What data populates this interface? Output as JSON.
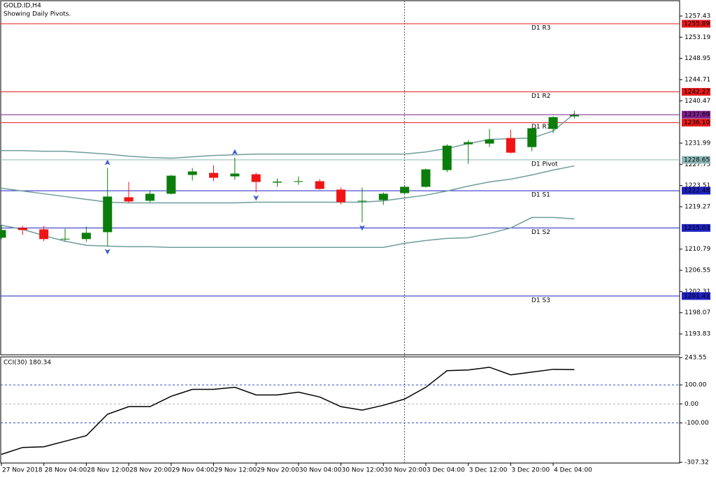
{
  "chart_data": [
    {
      "type": "candlestick",
      "title": "GOLD.ID,H4",
      "subtitle": "Showing Daily Pivots.",
      "categories": [
        "27 Nov 2018",
        null,
        "28 Nov 04:00",
        null,
        "28 Nov 12:00",
        null,
        "28 Nov 20:00",
        null,
        "29 Nov 04:00",
        null,
        "29 Nov 12:00",
        null,
        "29 Nov 20:00",
        null,
        "30 Nov 04:00",
        null,
        "30 Nov 12:00",
        null,
        "30 Nov 20:00",
        null,
        "3 Dec 04:00",
        null,
        "3 Dec 12:00",
        null,
        "3 Dec 20:00",
        null,
        "4 Dec 04:00",
        null
      ],
      "candles": {
        "open": [
          1213.08,
          1215.03,
          1214.75,
          1212.8,
          1212.8,
          1214.19,
          1221.17,
          1220.47,
          1221.87,
          1225.63,
          1226.05,
          1225.35,
          1225.77,
          1224.1,
          1224.24,
          1224.38,
          1222.7,
          1220.33,
          1220.61,
          1222.0,
          1223.26,
          1226.61,
          1231.77,
          1231.91,
          1233.02,
          1231.21,
          1234.84,
          1237.35
        ],
        "high": [
          1215.59,
          1215.45,
          1215.45,
          1214.89,
          1215.31,
          1227.03,
          1224.24,
          1222.56,
          1225.63,
          1227.03,
          1227.58,
          1229.12,
          1226.05,
          1224.93,
          1225.35,
          1224.79,
          1223.12,
          1223.12,
          1222.14,
          1223.54,
          1226.89,
          1231.77,
          1232.6,
          1234.84,
          1234.7,
          1232.74,
          1237.35,
          1238.46
        ],
        "low": [
          1212.8,
          1213.64,
          1212.38,
          1212.38,
          1212.24,
          1211.4,
          1220.05,
          1220.19,
          1221.73,
          1224.52,
          1224.38,
          1224.66,
          1222.14,
          1223.26,
          1223.68,
          1222.7,
          1219.77,
          1216.15,
          1219.63,
          1221.9,
          1223.12,
          1226.19,
          1227.86,
          1231.21,
          1229.95,
          1230.37,
          1234.0,
          1236.93
        ],
        "close": [
          1214.61,
          1214.61,
          1212.8,
          1212.87,
          1214.06,
          1221.31,
          1220.33,
          1221.87,
          1225.49,
          1226.33,
          1225.07,
          1225.91,
          1224.24,
          1224.31,
          1224.38,
          1222.84,
          1220.19,
          1220.47,
          1221.87,
          1223.26,
          1226.75,
          1231.49,
          1232.19,
          1232.74,
          1230.09,
          1234.98,
          1237.21,
          1237.69
        ]
      },
      "up_color": "#0b7d0b",
      "down_color": "#f01414",
      "series": [
        {
          "color": "#6f9c9c",
          "values": [
            1230.51,
            1230.51,
            1230.37,
            1230.37,
            1230.09,
            1229.81,
            1229.39,
            1229.12,
            1228.98,
            1229.26,
            1229.53,
            1229.67,
            1229.81,
            1229.81,
            1229.81,
            1229.81,
            1229.81,
            1229.81,
            1229.81,
            1229.81,
            1230.23,
            1230.93,
            1231.91,
            1232.74,
            1232.88,
            1233.02,
            1234.42,
            1237.9
          ]
        },
        {
          "color": "#6f9c9c",
          "values": [
            1222.98,
            1222.42,
            1221.87,
            1221.31,
            1220.75,
            1220.19,
            1220.05,
            1220.05,
            1220.05,
            1220.05,
            1220.05,
            1220.05,
            1220.19,
            1220.19,
            1220.19,
            1220.19,
            1220.19,
            1220.19,
            1220.47,
            1221.03,
            1221.59,
            1222.42,
            1223.4,
            1224.24,
            1224.79,
            1225.63,
            1226.61,
            1227.44
          ]
        },
        {
          "color": "#6f9c9c",
          "values": [
            1215.59,
            1214.75,
            1213.5,
            1212.38,
            1211.55,
            1211.4,
            1211.27,
            1211.27,
            1211.13,
            1211.13,
            1211.13,
            1211.13,
            1211.13,
            1211.13,
            1211.13,
            1211.13,
            1211.13,
            1211.13,
            1211.13,
            1211.96,
            1212.52,
            1212.94,
            1213.08,
            1213.92,
            1215.03,
            1217.12,
            1217.12,
            1216.84
          ]
        }
      ],
      "levels": {
        "names": [
          "D1 R3",
          "D1 R2",
          "D1 R1",
          "D1 Pivot",
          "D1 S1",
          "D1 S2",
          "D1 S3"
        ],
        "values": [
          1255.89,
          1242.27,
          1236.1,
          1228.65,
          1222.48,
          1215.03,
          1201.41
        ],
        "value_labels": [
          "1255.89",
          "1242.27",
          "1236.10",
          "1228.65",
          "1222.48",
          "1215.03",
          "1201.41"
        ],
        "colors": [
          "#e31a1a",
          "#e31a1a",
          "#e31a1a",
          "#8fb8b8",
          "#1f22c0",
          "#1f22c0",
          "#1f22c0"
        ]
      },
      "last_price": 1237.69,
      "last_price_color": "#7d1f8c",
      "fractals": {
        "up": [
          5,
          11
        ],
        "down": [
          5,
          12,
          17
        ],
        "color": "#3a5ad0"
      },
      "ylim": [
        1189.65,
        1260.5
      ],
      "yticks": [
        1257.43,
        1253.19,
        1248.95,
        1244.71,
        1240.47,
        1231.99,
        1227.75,
        1223.51,
        1219.27,
        1210.79,
        1206.55,
        1202.31,
        1198.07,
        1193.83
      ]
    },
    {
      "type": "line",
      "title": "CCI(30) 180.34",
      "color": "#000000",
      "values": [
        -265.5,
        -229.1,
        -225.5,
        -196.4,
        -167.3,
        -54.5,
        -14.5,
        -14.5,
        40.0,
        76.4,
        76.4,
        87.3,
        47.3,
        47.3,
        61.8,
        36.4,
        -14.5,
        -32.7,
        -7.3,
        25.5,
        87.3,
        174.5,
        178.2,
        192.7,
        152.7,
        167.3,
        181.8,
        180.34
      ],
      "ylim": [
        -307.32,
        243.55
      ],
      "yticks": [
        243.55,
        {
          "value": 100,
          "label": "100.00"
        },
        {
          "value": 0,
          "label": "0.00"
        },
        {
          "value": -100,
          "label": "-100.00"
        },
        -307.32
      ],
      "levels": [
        {
          "value": 100,
          "color": "#2f4fbf"
        },
        {
          "value": 0,
          "color": "#b0b0b0"
        },
        {
          "value": -100,
          "color": "#2f4fbf"
        }
      ]
    }
  ]
}
